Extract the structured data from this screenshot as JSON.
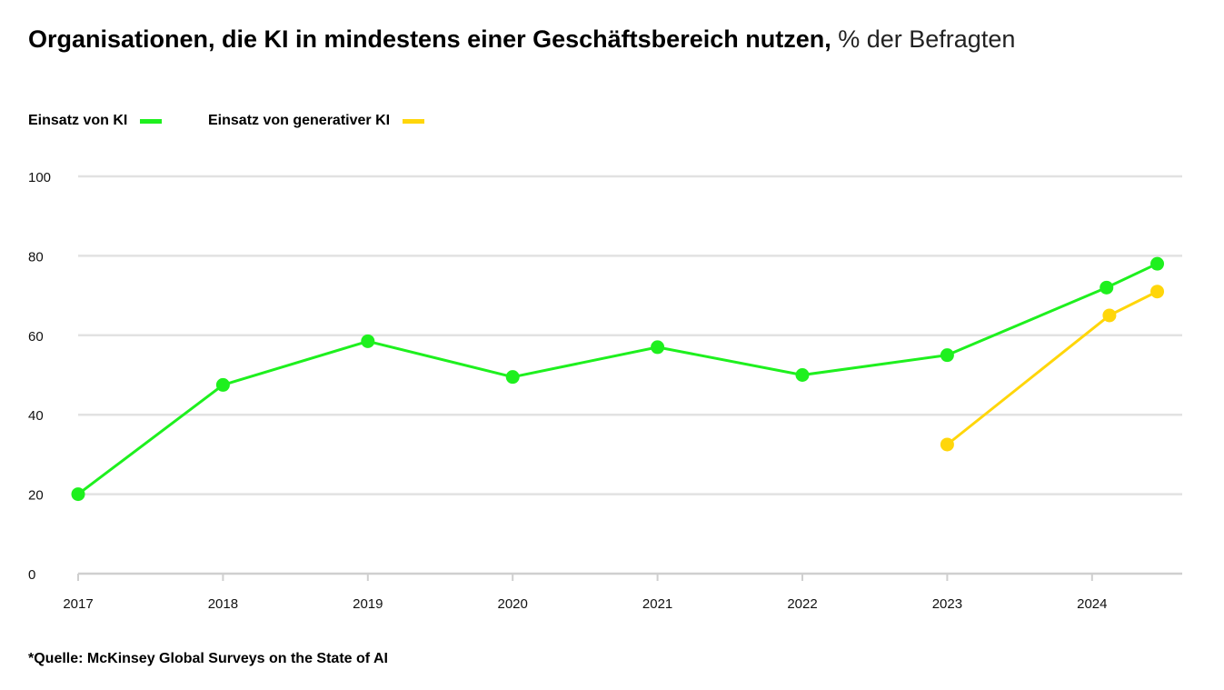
{
  "title": {
    "bold": "Organisationen, die KI in mindestens einer Geschäftsbereich nutzen,",
    "unit": "% der Befragten"
  },
  "legend": [
    {
      "label": "Einsatz von KI",
      "color": "#1ef01e"
    },
    {
      "label": "Einsatz von generativer KI",
      "color": "#ffd60a"
    }
  ],
  "source": "*Quelle: McKinsey Global Surveys on the State of AI",
  "chart_data": {
    "type": "line",
    "title": "Organisationen, die KI in mindestens einer Geschäftsbereich nutzen, % der Befragten",
    "xlabel": "",
    "ylabel": "% der Befragten",
    "xlim": [
      2017,
      2024.45
    ],
    "ylim": [
      0,
      100
    ],
    "x_ticks": [
      2017,
      2018,
      2019,
      2020,
      2021,
      2022,
      2023,
      2024
    ],
    "y_ticks": [
      0,
      20,
      40,
      60,
      80,
      100
    ],
    "grid": true,
    "legend_position": "top-left",
    "series": [
      {
        "name": "Einsatz von KI",
        "color": "#1ef01e",
        "x": [
          2017,
          2018,
          2019,
          2020,
          2021,
          2022,
          2023,
          2024.1,
          2024.45
        ],
        "y": [
          20,
          47.5,
          58.5,
          49.5,
          57,
          50,
          55,
          72,
          78
        ]
      },
      {
        "name": "Einsatz von generativer KI",
        "color": "#ffd60a",
        "x": [
          2023,
          2024.12,
          2024.45
        ],
        "y": [
          32.5,
          65,
          71
        ]
      }
    ]
  }
}
